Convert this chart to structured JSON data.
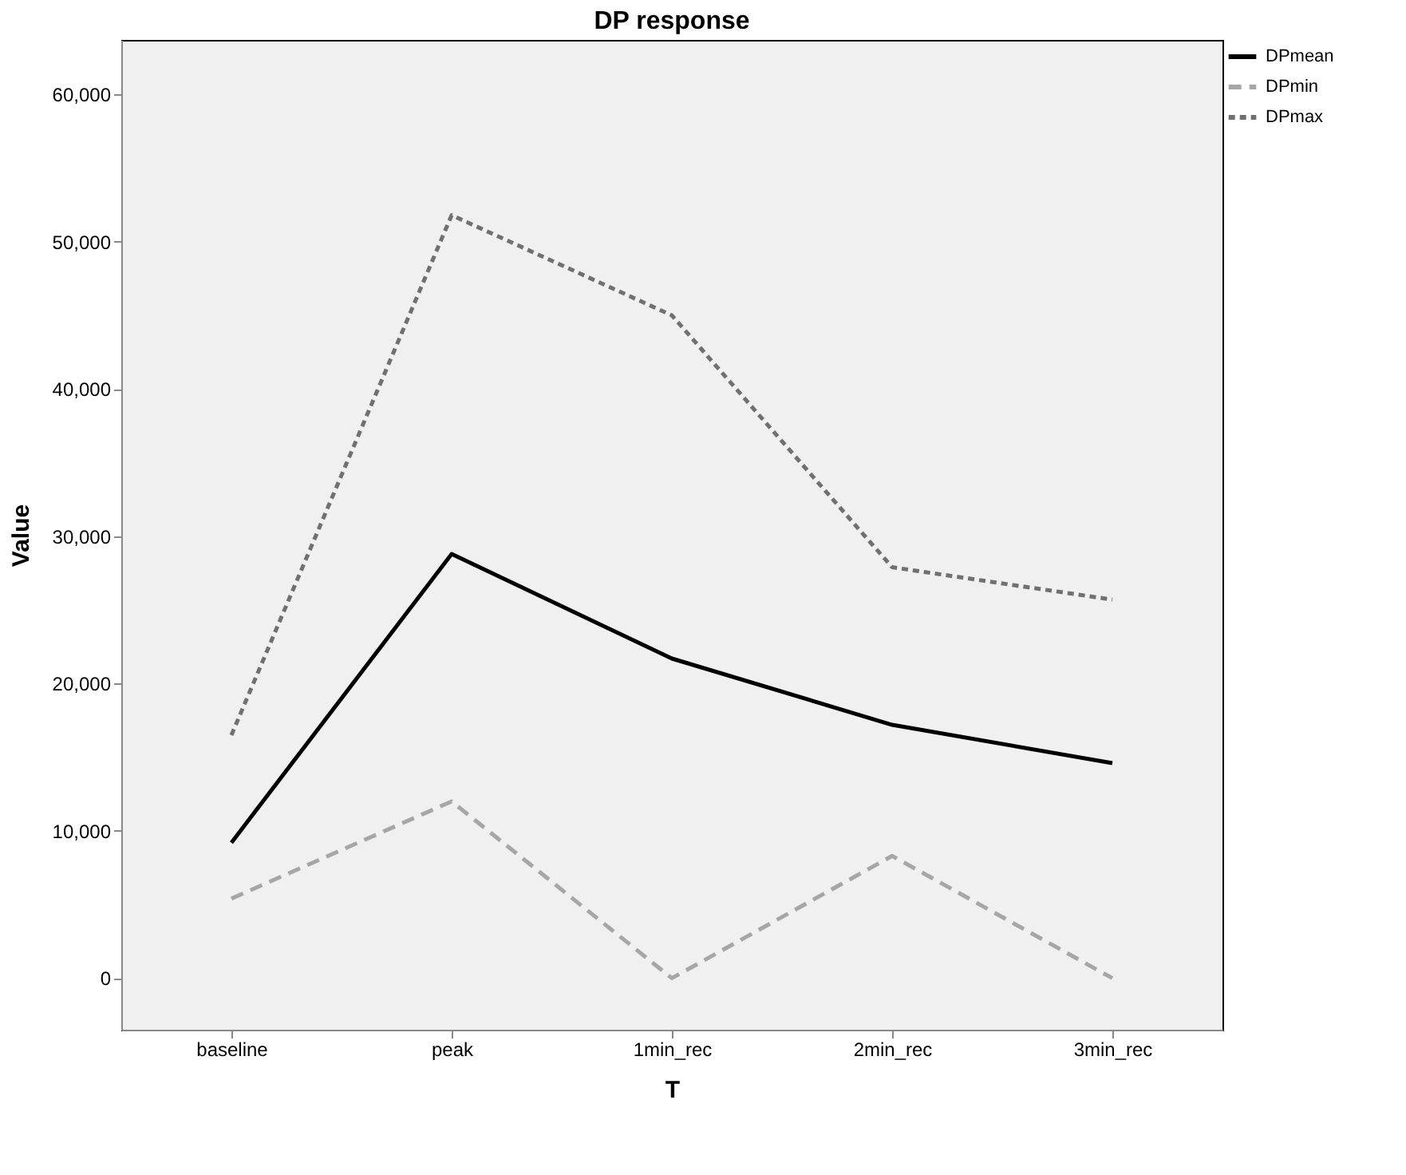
{
  "chart_data": {
    "type": "line",
    "title": "DP response",
    "xlabel": "T",
    "ylabel": "Value",
    "categories": [
      "baseline",
      "peak",
      "1min_rec",
      "2min_rec",
      "3min_rec"
    ],
    "series": [
      {
        "name": "DPmean",
        "color": "#000000",
        "line_style": "solid",
        "values": [
          9200,
          28800,
          21700,
          17200,
          14600
        ]
      },
      {
        "name": "DPmin",
        "color": "#a6a6a6",
        "line_style": "dashed",
        "values": [
          5400,
          12000,
          0,
          8300,
          0
        ]
      },
      {
        "name": "DPmax",
        "color": "#707070",
        "line_style": "dotted",
        "values": [
          16500,
          51800,
          45000,
          27900,
          25700
        ]
      }
    ],
    "ylim": [
      -3500,
      63700
    ],
    "yticks": [
      {
        "value": 0,
        "label": "0"
      },
      {
        "value": 10000,
        "label": "10,000"
      },
      {
        "value": 20000,
        "label": "20,000"
      },
      {
        "value": 30000,
        "label": "30,000"
      },
      {
        "value": 40000,
        "label": "40,000"
      },
      {
        "value": 50000,
        "label": "50,000"
      },
      {
        "value": 60000,
        "label": "60,000"
      }
    ],
    "grid": false,
    "legend": "top right"
  }
}
